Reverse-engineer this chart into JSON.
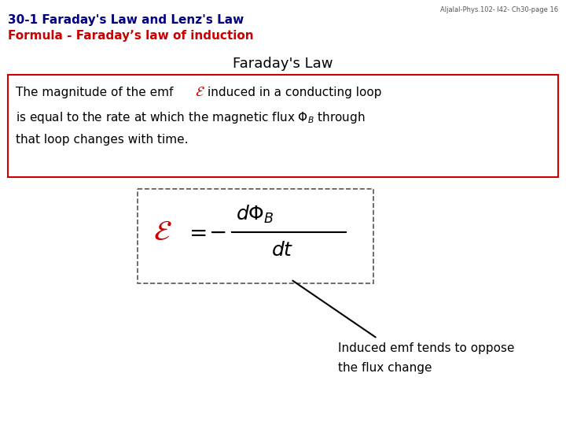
{
  "bg_color": "#ffffff",
  "title_line1": "30-1 Faraday's Law and Lenz's Law",
  "title_line1_color": "#000080",
  "title_line2": "Formula - Faraday’s law of induction",
  "title_line2_color": "#cc0000",
  "watermark": "Aljalal-Phys.102- l42- Ch30-page 16",
  "section_title": "Faraday's Law",
  "section_title_color": "#000000",
  "box1_border_color": "#cc0000",
  "formula_box_border": "#555555",
  "annotation_line1": "Induced emf tends to oppose",
  "annotation_line2": "the flux change",
  "emf_color": "#cc0000",
  "text_color": "#000000",
  "title1_fontsize": 11,
  "title2_fontsize": 11,
  "watermark_fontsize": 6,
  "section_fontsize": 13,
  "body_fontsize": 11,
  "formula_fontsize": 20,
  "annotation_fontsize": 11
}
